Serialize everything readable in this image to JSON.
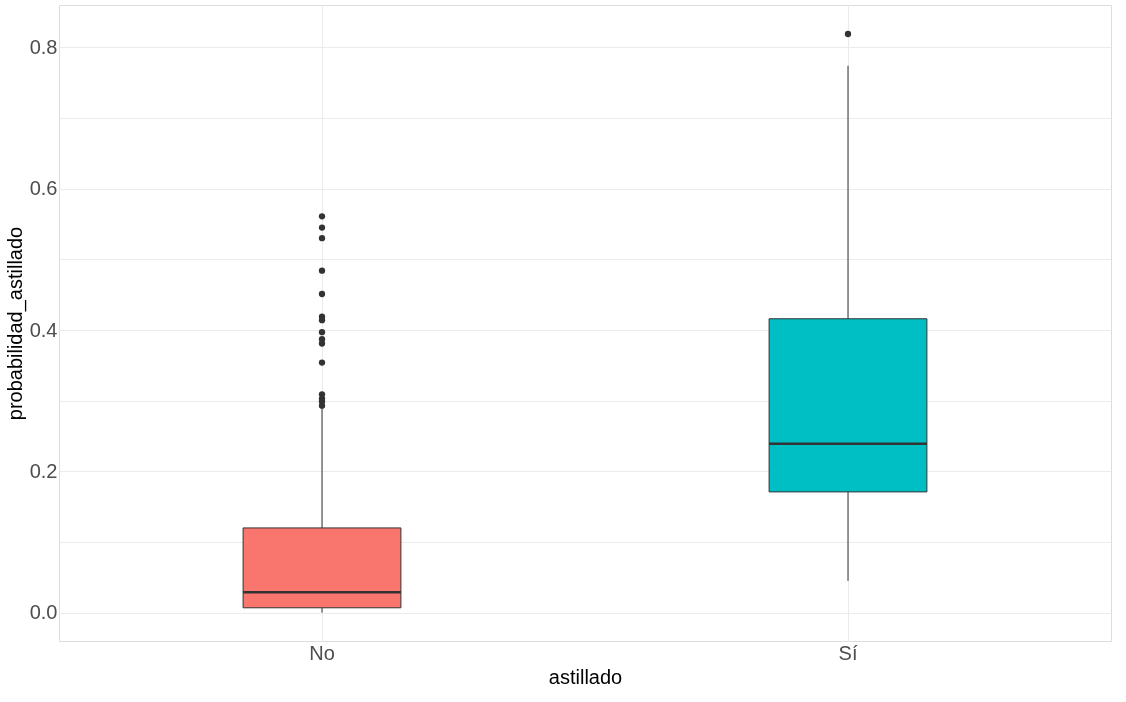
{
  "chart_data": {
    "type": "box",
    "xlabel": "astillado",
    "ylabel": "probabilidad_astillado",
    "categories": [
      "No",
      "Sí"
    ],
    "colors": [
      "#f8766d",
      "#00bfc4"
    ],
    "boxes": [
      {
        "low": 0.0,
        "q1": 0.007,
        "median": 0.029,
        "q3": 0.12,
        "high": 0.29,
        "outliers": [
          0.561,
          0.545,
          0.53,
          0.484,
          0.451,
          0.419,
          0.414,
          0.397,
          0.387,
          0.381,
          0.354,
          0.309,
          0.303,
          0.299,
          0.293
        ]
      },
      {
        "low": 0.045,
        "q1": 0.171,
        "median": 0.239,
        "q3": 0.416,
        "high": 0.774,
        "outliers": [
          0.819
        ]
      }
    ],
    "ylim": [
      -0.04,
      0.86
    ],
    "yticks": [
      {
        "value": 0,
        "label": "0.0"
      },
      {
        "value": 0.1,
        "label": null
      },
      0.2,
      {
        "value": 0.3,
        "label": null
      },
      0.4,
      {
        "value": 0.5,
        "label": null
      },
      0.6,
      {
        "value": 0.7,
        "label": null
      },
      0.8
    ],
    "grid": true
  }
}
